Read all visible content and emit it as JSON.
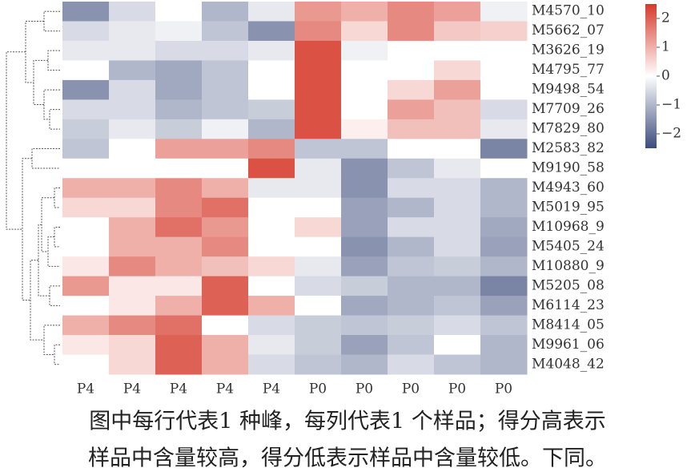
{
  "chart_data": {
    "type": "heatmap",
    "rows": [
      "M4570_10",
      "M5662_07",
      "M3626_19",
      "M4795_77",
      "M9498_54",
      "M7709_26",
      "M7829_80",
      "M2583_82",
      "M9190_58",
      "M4943_60",
      "M5019_95",
      "M10968_9",
      "M5405_24",
      "M10880_9",
      "M5205_08",
      "M6114_23",
      "M8414_05",
      "M9961_06",
      "M4048_42"
    ],
    "columns": [
      "P4",
      "P4",
      "P4",
      "P4",
      "P4",
      "P0",
      "P0",
      "P0",
      "P0",
      "P0"
    ],
    "values": [
      [
        -1.5,
        -0.5,
        0,
        -1,
        -0.3,
        1.3,
        1,
        1.5,
        1.2,
        -0.2
      ],
      [
        -0.5,
        -0.3,
        -0.2,
        -0.8,
        -1.5,
        1.5,
        0.5,
        1.5,
        0.7,
        0.6
      ],
      [
        -0.3,
        -0.3,
        -0.5,
        -0.5,
        -0.3,
        2.2,
        -0.2,
        0,
        0,
        0
      ],
      [
        0,
        -1,
        -1.2,
        -0.8,
        0,
        2.2,
        0,
        0,
        0.5,
        0
      ],
      [
        -1.5,
        -0.5,
        -1.2,
        -0.8,
        0,
        2.2,
        0,
        0.5,
        1.2,
        0
      ],
      [
        -0.5,
        -0.5,
        -1,
        -0.8,
        -0.7,
        2.2,
        0,
        1.2,
        0.8,
        -0.5
      ],
      [
        -0.7,
        -0.3,
        -0.7,
        -0.2,
        -1,
        2.2,
        0.2,
        0.8,
        0.8,
        -0.3
      ],
      [
        -0.8,
        0,
        1.2,
        1.2,
        1.5,
        -0.8,
        -0.8,
        0,
        0,
        -1.7
      ],
      [
        0,
        0,
        0,
        0,
        2.2,
        -0.3,
        -1.5,
        -0.8,
        -0.3,
        0
      ],
      [
        1,
        1,
        1.5,
        1,
        -0.3,
        -0.3,
        -1.5,
        -0.5,
        -0.5,
        -1
      ],
      [
        0.5,
        0.5,
        1.5,
        1.8,
        0,
        0,
        -1.3,
        -1,
        -0.5,
        -1
      ],
      [
        0,
        1,
        1.8,
        1.3,
        0,
        0.5,
        -1.3,
        -0.5,
        -0.5,
        -1.2
      ],
      [
        0,
        1,
        1,
        1.5,
        0,
        0,
        -1.5,
        -1,
        -0.5,
        -1.3
      ],
      [
        0.3,
        1.5,
        1,
        0.8,
        0.5,
        -0.3,
        -1.3,
        -0.8,
        -0.7,
        -1
      ],
      [
        1.3,
        0.3,
        0.3,
        2,
        0,
        -0.5,
        -0.7,
        -1,
        -1,
        -1.7
      ],
      [
        0,
        0.3,
        1,
        2,
        1,
        0,
        -1.2,
        -1,
        -0.8,
        -1.3
      ],
      [
        1,
        1.5,
        1.8,
        0,
        -0.5,
        -0.7,
        -0.8,
        -0.7,
        -0.5,
        -0.8
      ],
      [
        0.3,
        0.5,
        2,
        1,
        -0.3,
        -0.7,
        -1.3,
        -0.8,
        0,
        -1
      ],
      [
        0,
        0.5,
        2,
        1,
        -0.5,
        -0.8,
        -1,
        -0.5,
        -0.8,
        -1
      ]
    ],
    "zlim": [
      -2.5,
      2.5
    ],
    "zticks": [
      2,
      1,
      0,
      {
        "value": -1,
        "label": "−1"
      },
      {
        "value": -2,
        "label": "−2"
      }
    ],
    "colors": [
      "#3b4b7c",
      "#ffffff",
      "#d63a2b"
    ]
  },
  "caption": [
    "图中每行代表1 种峰，每列代表1 个样品；得分高表示",
    "样品中含量较高，得分低表示样品中含量较低。下同。"
  ]
}
